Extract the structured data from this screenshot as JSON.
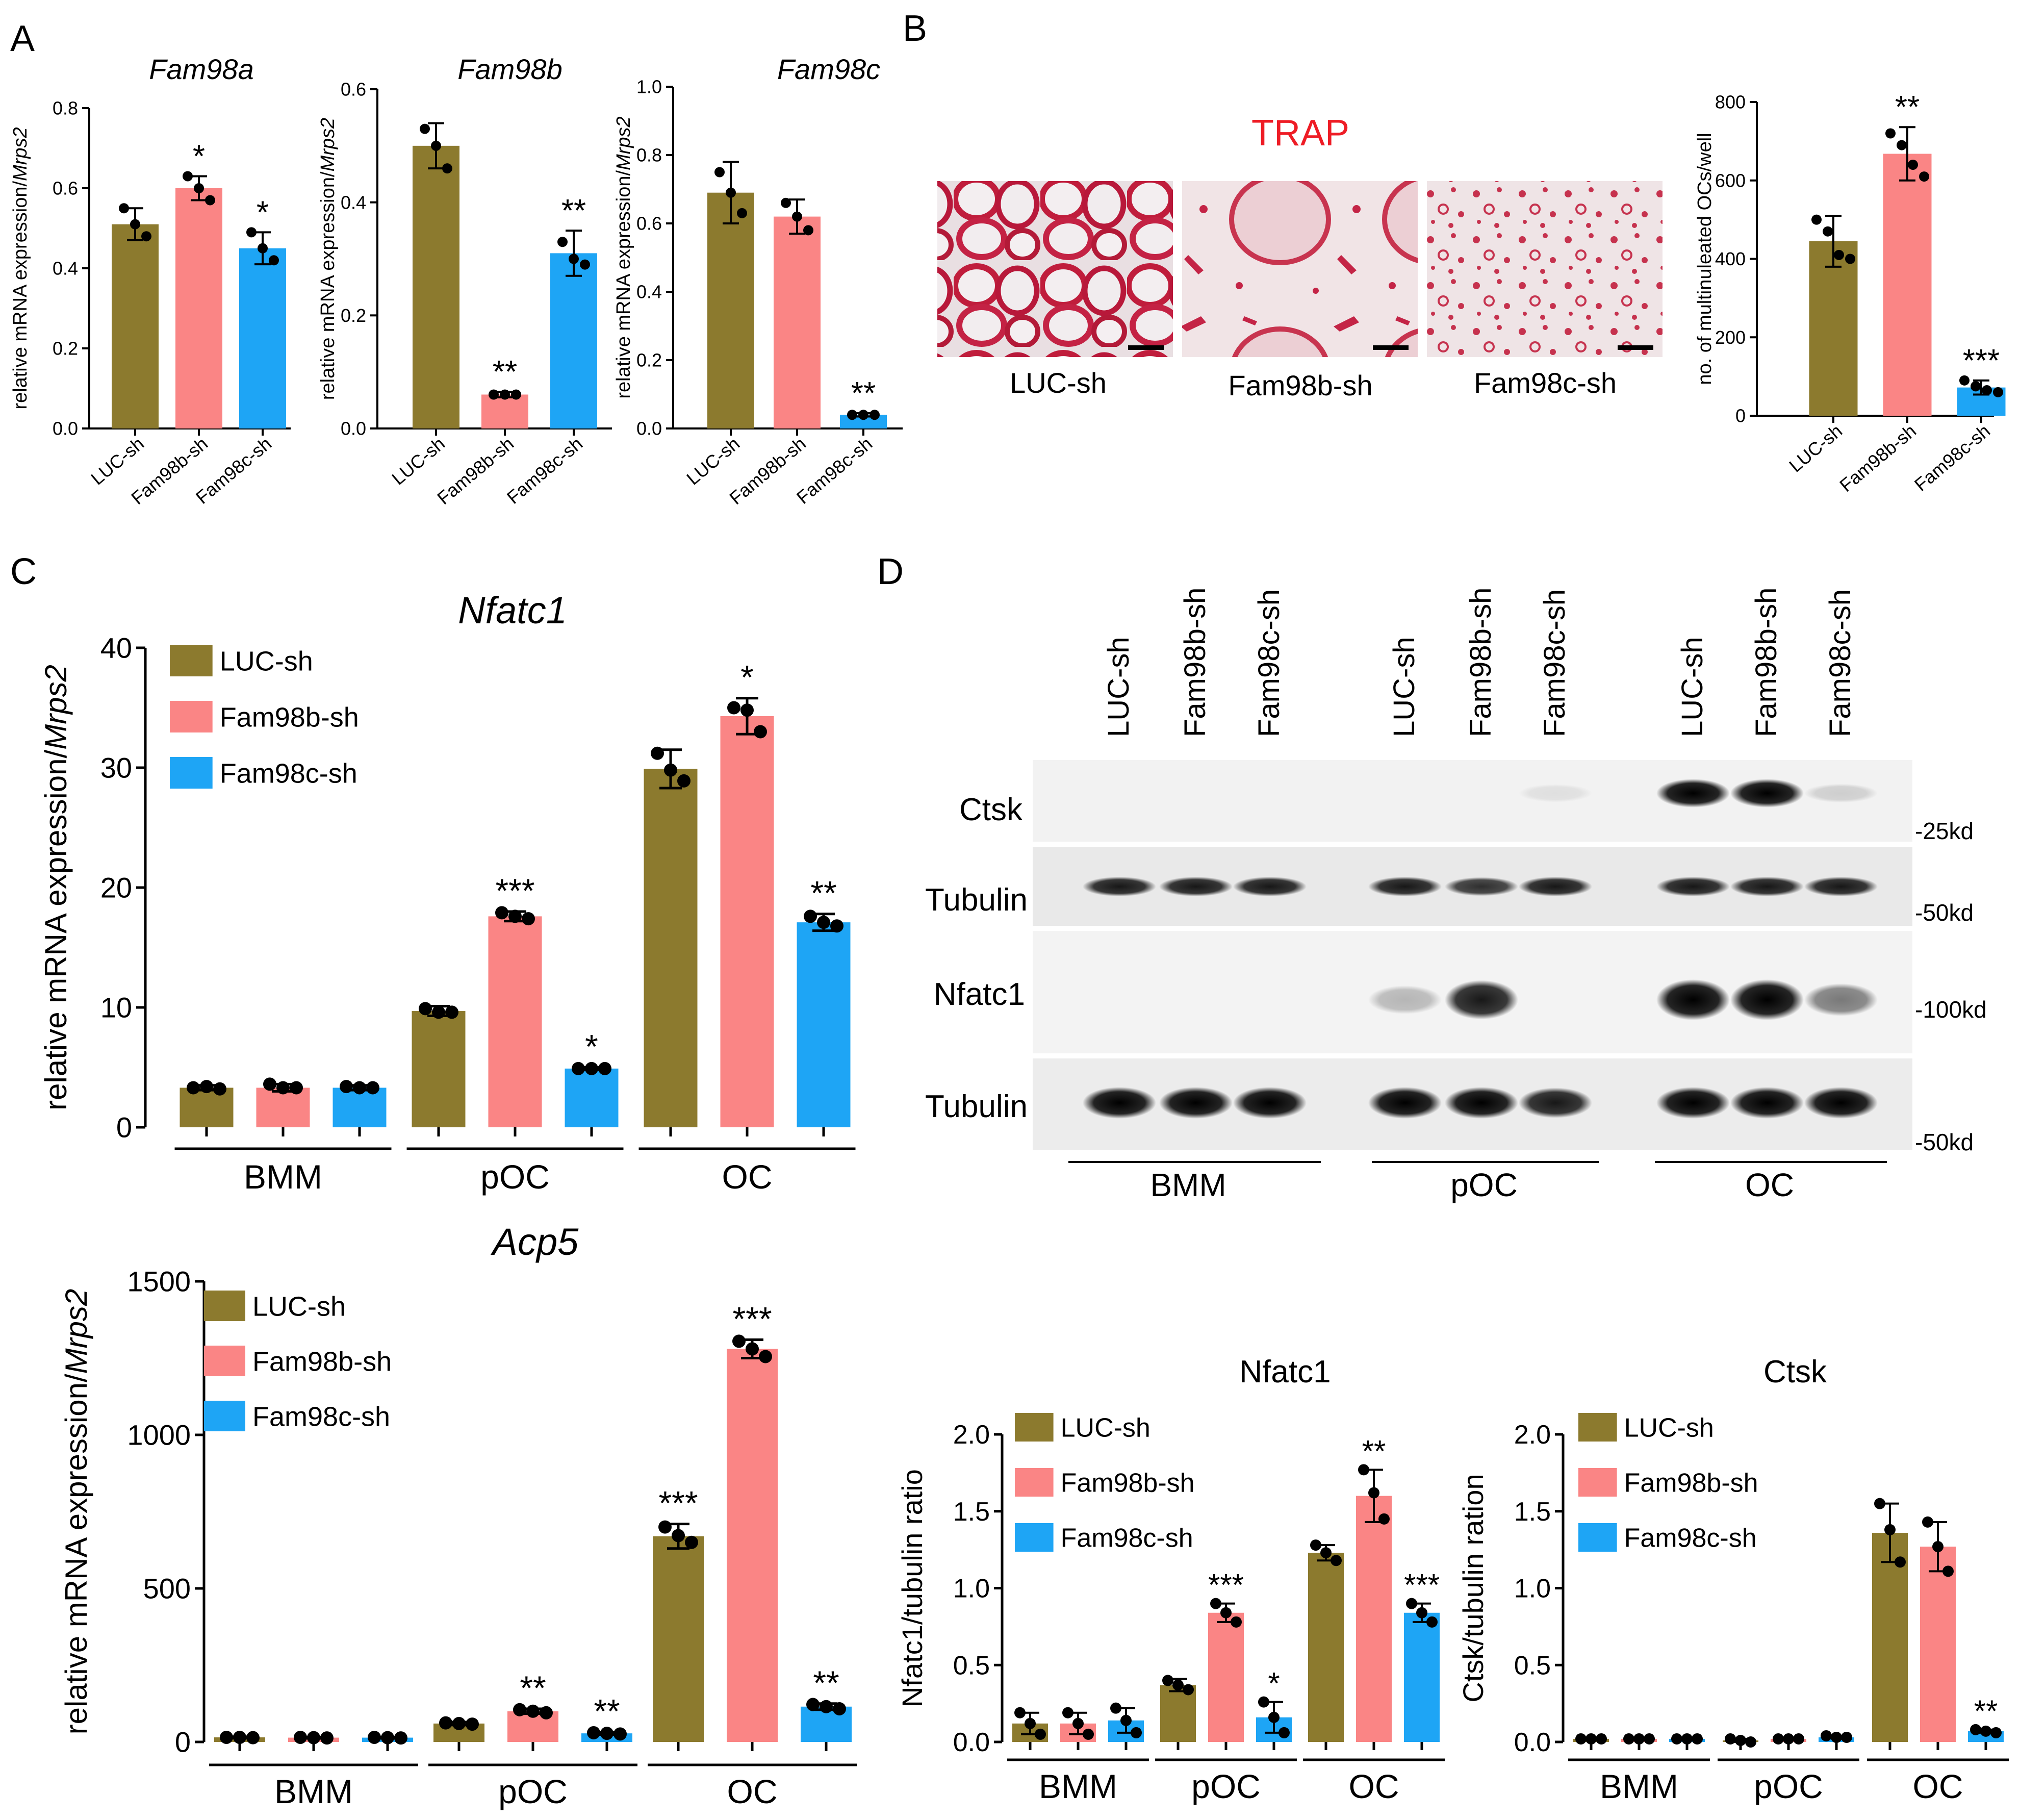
{
  "colors": {
    "luc": "#8C7A2E",
    "fam98b": "#FA8585",
    "fam98c": "#1EA5F5",
    "trap_title": "#EE1C25"
  },
  "panel_labels": [
    "A",
    "B",
    "C",
    "D"
  ],
  "legend_labels": [
    "LUC-sh",
    "Fam98b-sh",
    "Fam98c-sh"
  ],
  "trap": {
    "title": "TRAP",
    "captions": [
      "LUC-sh",
      "Fam98b-sh",
      "Fam98c-sh"
    ]
  },
  "western": {
    "lane_labels": [
      "LUC-sh",
      "Fam98b-sh",
      "Fam98c-sh",
      "LUC-sh",
      "Fam98b-sh",
      "Fam98c-sh",
      "LUC-sh",
      "Fam98b-sh",
      "Fam98c-sh"
    ],
    "blot_labels": [
      "Ctsk",
      "Tubulin",
      "Nfatc1",
      "Tubulin"
    ],
    "size_markers": [
      "-25kd",
      "-50kd",
      "-100kd",
      "-50kd"
    ],
    "groups": [
      "BMM",
      "pOC",
      "OC"
    ],
    "band_intensity": {
      "Ctsk": [
        0,
        0,
        0,
        0,
        0,
        0.08,
        1.0,
        1.0,
        0.15
      ],
      "Tubulin_top": [
        0.9,
        0.9,
        0.9,
        0.9,
        0.8,
        0.9,
        0.9,
        0.9,
        0.9
      ],
      "Nfatc1": [
        0,
        0,
        0,
        0.25,
        0.9,
        0,
        1.0,
        1.0,
        0.5
      ],
      "Tubulin_bottom": [
        1.0,
        1.0,
        1.0,
        1.0,
        1.0,
        0.9,
        1.0,
        1.0,
        1.0
      ]
    }
  },
  "chart_data": [
    {
      "id": "fam98a",
      "type": "bar",
      "title": "Fam98a",
      "ylabel": "relative mRNA expression/Mrps2",
      "categories": [
        "LUC-sh",
        "Fam98b-sh",
        "Fam98c-sh"
      ],
      "values": [
        0.51,
        0.6,
        0.45
      ],
      "errors": [
        0.04,
        0.03,
        0.04
      ],
      "points": [
        [
          0.55,
          0.51,
          0.48
        ],
        [
          0.63,
          0.6,
          0.57
        ],
        [
          0.49,
          0.45,
          0.42
        ]
      ],
      "significance": [
        "",
        "*",
        "*"
      ],
      "ylim": [
        0,
        0.8
      ],
      "yticks": [
        "0.0",
        "0.2",
        "0.4",
        "0.6",
        "0.8"
      ]
    },
    {
      "id": "fam98b",
      "type": "bar",
      "title": "Fam98b",
      "ylabel": "relative mRNA expression/Mrps2",
      "categories": [
        "LUC-sh",
        "Fam98b-sh",
        "Fam98c-sh"
      ],
      "values": [
        0.5,
        0.06,
        0.31
      ],
      "errors": [
        0.04,
        0.005,
        0.04
      ],
      "points": [
        [
          0.53,
          0.5,
          0.46
        ],
        [
          0.06,
          0.06,
          0.06
        ],
        [
          0.33,
          0.3,
          0.29
        ]
      ],
      "significance": [
        "",
        "**",
        "**"
      ],
      "ylim": [
        0,
        0.6
      ],
      "yticks": [
        "0.0",
        "0.2",
        "0.4",
        "0.6"
      ]
    },
    {
      "id": "fam98c",
      "type": "bar",
      "title": "Fam98c",
      "ylabel": "relative mRNA expression/Mrps2",
      "categories": [
        "LUC-sh",
        "Fam98b-sh",
        "Fam98c-sh"
      ],
      "values": [
        0.69,
        0.62,
        0.04
      ],
      "errors": [
        0.09,
        0.05,
        0.005
      ],
      "points": [
        [
          0.75,
          0.69,
          0.63
        ],
        [
          0.66,
          0.62,
          0.58
        ],
        [
          0.04,
          0.04,
          0.04
        ]
      ],
      "significance": [
        "",
        "",
        "**"
      ],
      "ylim": [
        0,
        1.0
      ],
      "yticks": [
        "0.0",
        "0.2",
        "0.4",
        "0.6",
        "0.8",
        "1.0"
      ]
    },
    {
      "id": "trapcount",
      "type": "bar",
      "title": "",
      "ylabel": "no. of multinuleated OCs/well",
      "categories": [
        "LUC-sh",
        "Fam98b-sh",
        "Fam98c-sh"
      ],
      "values": [
        445,
        668,
        72
      ],
      "errors": [
        65,
        68,
        18
      ],
      "points": [
        [
          500,
          470,
          410,
          400
        ],
        [
          720,
          690,
          640,
          610
        ],
        [
          90,
          75,
          65,
          60
        ]
      ],
      "significance": [
        "",
        "**",
        "***"
      ],
      "ylim": [
        0,
        800
      ],
      "yticks": [
        "0",
        "200",
        "400",
        "600",
        "800"
      ]
    },
    {
      "id": "nfatc1mrna",
      "type": "bar",
      "title": "Nfatc1",
      "ylabel": "relative mRNA expression/Mrps2",
      "groups": [
        "BMM",
        "pOC",
        "OC"
      ],
      "series": [
        {
          "name": "LUC-sh",
          "values": [
            3.3,
            9.7,
            29.9
          ],
          "errors": [
            0.2,
            0.4,
            1.6
          ],
          "points": [
            [
              3.3,
              3.4,
              3.2
            ],
            [
              9.9,
              9.6,
              9.6
            ],
            [
              31.2,
              29.8,
              28.9
            ]
          ]
        },
        {
          "name": "Fam98b-sh",
          "values": [
            3.3,
            17.6,
            34.3
          ],
          "errors": [
            0.3,
            0.4,
            1.5
          ],
          "points": [
            [
              3.6,
              3.3,
              3.3
            ],
            [
              17.9,
              17.6,
              17.4
            ],
            [
              35.0,
              34.8,
              33.0
            ]
          ]
        },
        {
          "name": "Fam98c-sh",
          "values": [
            3.3,
            4.9,
            17.1
          ],
          "errors": [
            0.2,
            0.1,
            0.7
          ],
          "points": [
            [
              3.4,
              3.3,
              3.3
            ],
            [
              4.9,
              4.9,
              4.9
            ],
            [
              17.6,
              17.1,
              16.8
            ]
          ]
        }
      ],
      "significance": [
        [
          "",
          "",
          ""
        ],
        [
          "",
          "***",
          "*"
        ],
        [
          "",
          "*",
          "**"
        ]
      ],
      "ylim": [
        0,
        40
      ],
      "yticks": [
        "0",
        "10",
        "20",
        "30",
        "40"
      ]
    },
    {
      "id": "acp5mrna",
      "type": "bar",
      "title": "Acp5",
      "ylabel": "relative mRNA expression/Mrps2",
      "groups": [
        "BMM",
        "pOC",
        "OC"
      ],
      "series": [
        {
          "name": "LUC-sh",
          "values": [
            15,
            60,
            670
          ],
          "errors": [
            2,
            5,
            40
          ],
          "points": [
            [
              15,
              15,
              14
            ],
            [
              62,
              60,
              58
            ],
            [
              700,
              672,
              650
            ]
          ]
        },
        {
          "name": "Fam98b-sh",
          "values": [
            14,
            100,
            1280
          ],
          "errors": [
            2,
            8,
            30
          ],
          "points": [
            [
              15,
              14,
              13
            ],
            [
              105,
              100,
              95
            ],
            [
              1305,
              1280,
              1255
            ]
          ]
        },
        {
          "name": "Fam98c-sh",
          "values": [
            14,
            28,
            115
          ],
          "errors": [
            2,
            4,
            10
          ],
          "points": [
            [
              15,
              14,
              13
            ],
            [
              30,
              28,
              26
            ],
            [
              122,
              115,
              108
            ]
          ]
        }
      ],
      "significance": [
        [
          "",
          "",
          ""
        ],
        [
          "",
          "**",
          "**"
        ],
        [
          "***",
          "***",
          "**"
        ]
      ],
      "ylim": [
        0,
        1500
      ],
      "yticks": [
        "0",
        "500",
        "1000",
        "1500"
      ]
    },
    {
      "id": "nfatc1ratio",
      "type": "bar",
      "title": "Nfatc1",
      "ylabel": "Nfatc1/tubulin ratio",
      "groups": [
        "BMM",
        "pOC",
        "OC"
      ],
      "series": [
        {
          "name": "LUC-sh",
          "values": [
            0.12,
            0.37,
            1.23
          ],
          "errors": [
            0.07,
            0.04,
            0.05
          ],
          "points": [
            [
              0.19,
              0.12,
              0.05
            ],
            [
              0.4,
              0.37,
              0.34
            ],
            [
              1.28,
              1.23,
              1.18
            ]
          ]
        },
        {
          "name": "Fam98b-sh",
          "values": [
            0.12,
            0.84,
            1.6
          ],
          "errors": [
            0.07,
            0.06,
            0.17
          ],
          "points": [
            [
              0.19,
              0.12,
              0.05
            ],
            [
              0.9,
              0.84,
              0.78
            ],
            [
              1.77,
              1.62,
              1.45
            ]
          ]
        },
        {
          "name": "Fam98c-sh",
          "values": [
            0.14,
            0.16,
            0.84
          ],
          "errors": [
            0.08,
            0.1,
            0.06
          ],
          "points": [
            [
              0.22,
              0.14,
              0.06
            ],
            [
              0.26,
              0.16,
              0.06
            ],
            [
              0.9,
              0.84,
              0.78
            ]
          ]
        }
      ],
      "significance": [
        [
          "",
          "",
          ""
        ],
        [
          "",
          "***",
          "*"
        ],
        [
          "",
          "**",
          "***"
        ]
      ],
      "ylim": [
        0,
        2.0
      ],
      "yticks": [
        "0.0",
        "0.5",
        "1.0",
        "1.5",
        "2.0"
      ]
    },
    {
      "id": "ctskratio",
      "type": "bar",
      "title": "Ctsk",
      "ylabel": "Ctsk/tubulin ration",
      "groups": [
        "BMM",
        "pOC",
        "OC"
      ],
      "series": [
        {
          "name": "LUC-sh",
          "values": [
            0.02,
            0.01,
            1.36
          ],
          "errors": [
            0.005,
            0.01,
            0.19
          ],
          "points": [
            [
              0.02,
              0.02,
              0.02
            ],
            [
              0.02,
              0.01,
              0.0
            ],
            [
              1.55,
              1.38,
              1.17
            ]
          ]
        },
        {
          "name": "Fam98b-sh",
          "values": [
            0.02,
            0.02,
            1.27
          ],
          "errors": [
            0.005,
            0.005,
            0.16
          ],
          "points": [
            [
              0.02,
              0.02,
              0.02
            ],
            [
              0.02,
              0.02,
              0.02
            ],
            [
              1.43,
              1.27,
              1.11
            ]
          ]
        },
        {
          "name": "Fam98c-sh",
          "values": [
            0.02,
            0.03,
            0.07
          ],
          "errors": [
            0.005,
            0.005,
            0.01
          ],
          "points": [
            [
              0.02,
              0.02,
              0.02
            ],
            [
              0.04,
              0.03,
              0.03
            ],
            [
              0.08,
              0.07,
              0.06
            ]
          ]
        }
      ],
      "significance": [
        [
          "",
          "",
          ""
        ],
        [
          "",
          "",
          ""
        ],
        [
          "",
          "",
          "**"
        ]
      ],
      "ylim": [
        0,
        2.0
      ],
      "yticks": [
        "0.0",
        "0.5",
        "1.0",
        "1.5",
        "2.0"
      ]
    }
  ]
}
